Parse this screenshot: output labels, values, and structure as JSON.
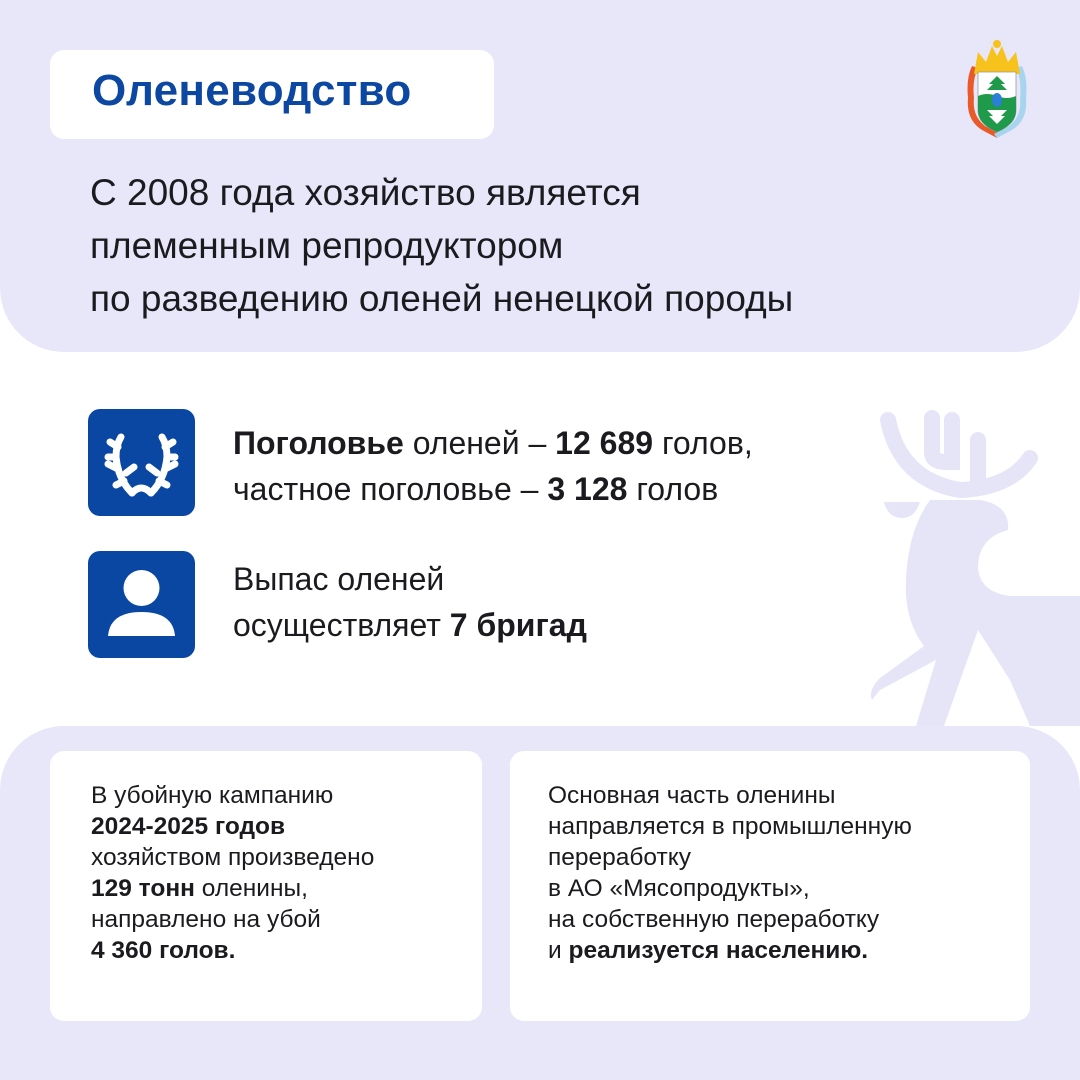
{
  "header": {
    "title": "Оленеводство",
    "headline": [
      "С 2008 года хозяйство является",
      "племенным репродуктором",
      "по разведению оленей ненецкой породы"
    ],
    "emblem_icon": "nenets-coat-of-arms"
  },
  "facts": [
    {
      "icon": "antlers-icon",
      "line1": {
        "bold": "Поголовье",
        "text": " оленей – ",
        "value": "12 689",
        "tail": " голов,"
      },
      "line2": {
        "text": "частное поголовье – ",
        "value": "3 128",
        "tail": " голов"
      }
    },
    {
      "icon": "person-icon",
      "line1": {
        "text": "Выпас оленей"
      },
      "line2": {
        "text": "осуществляет ",
        "value": "7 бригад"
      }
    }
  ],
  "cards": [
    {
      "l1": "В убойную кампанию",
      "l2": "2024-2025 годов",
      "l3": "хозяйством произведено",
      "l4_bold": "129 тонн",
      "l4": " оленины,",
      "l5": "направлено на убой",
      "l6": "4 360 голов."
    },
    {
      "l1": "Основная часть оленины",
      "l2": "направляется в промышленную",
      "l3": "переработку",
      "l4": "в АО «Мясопродукты»,",
      "l5": "на собственную переработку",
      "l6": "и ",
      "l6_bold": "реализуется населению."
    }
  ],
  "colors": {
    "accent": "#0a47a3",
    "panel": "#e8e7fa",
    "deer": "#e6e5f8"
  }
}
